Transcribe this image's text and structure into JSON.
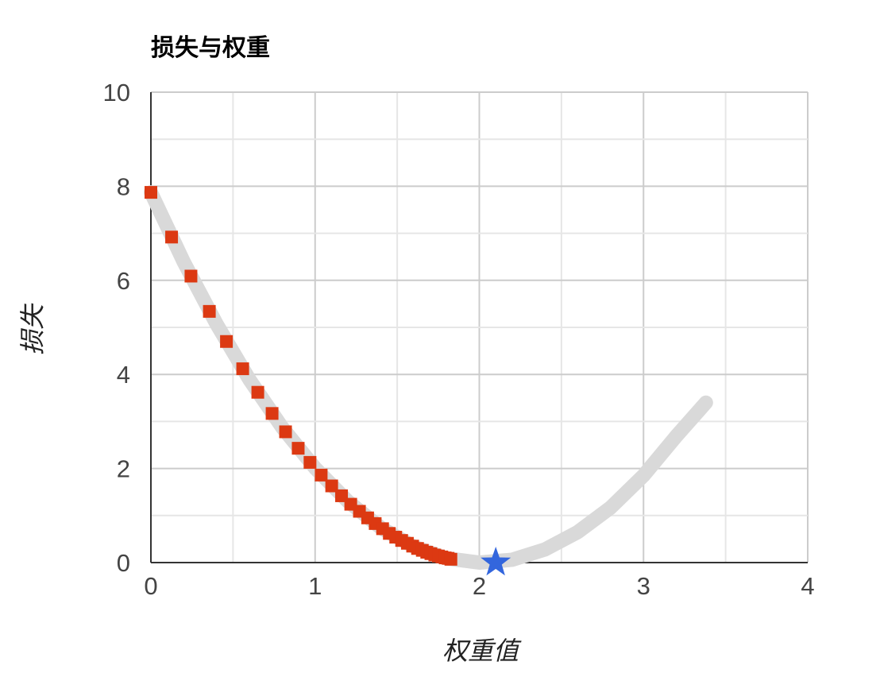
{
  "chart_data": {
    "type": "scatter",
    "title": "损失与权重",
    "xlabel": "权重值",
    "ylabel": "损失",
    "xlim": [
      0,
      4
    ],
    "ylim": [
      0,
      10
    ],
    "x_ticks": [
      "0",
      "1",
      "2",
      "3",
      "4"
    ],
    "y_ticks": [
      "0",
      "2",
      "4",
      "6",
      "8",
      "10"
    ],
    "grid": true,
    "colors": {
      "curve": "#d9d9d9",
      "steps": "#dc3912",
      "minimum": "#3366dd"
    },
    "loss_curve": {
      "x": [
        0,
        0.2,
        0.4,
        0.6,
        0.8,
        1.0,
        1.2,
        1.4,
        1.6,
        1.8,
        2.0,
        2.2,
        2.4,
        2.6,
        2.8,
        3.0,
        3.2,
        3.38
      ],
      "y": [
        7.87,
        6.39,
        5.07,
        3.89,
        2.87,
        2.01,
        1.3,
        0.74,
        0.34,
        0.09,
        0.0,
        0.06,
        0.28,
        0.65,
        1.17,
        1.85,
        2.69,
        3.4
      ]
    },
    "steps": {
      "marker": "square",
      "x": [
        0,
        0.126,
        0.244,
        0.356,
        0.46,
        0.559,
        0.651,
        0.738,
        0.82,
        0.897,
        0.969,
        1.037,
        1.101,
        1.161,
        1.217,
        1.27,
        1.32,
        1.366,
        1.411,
        1.452,
        1.491,
        1.527,
        1.562,
        1.594,
        1.624,
        1.653,
        1.68,
        1.705,
        1.729,
        1.751,
        1.772,
        1.792,
        1.81,
        1.827
      ],
      "y": [
        7.87,
        6.92,
        6.09,
        5.34,
        4.7,
        4.12,
        3.62,
        3.17,
        2.78,
        2.43,
        2.13,
        1.86,
        1.63,
        1.42,
        1.24,
        1.09,
        0.95,
        0.83,
        0.72,
        0.62,
        0.54,
        0.47,
        0.41,
        0.35,
        0.3,
        0.26,
        0.22,
        0.19,
        0.16,
        0.14,
        0.12,
        0.1,
        0.09,
        0.07
      ]
    },
    "minimum": {
      "marker": "star",
      "x": 2.1,
      "y": 0
    }
  }
}
